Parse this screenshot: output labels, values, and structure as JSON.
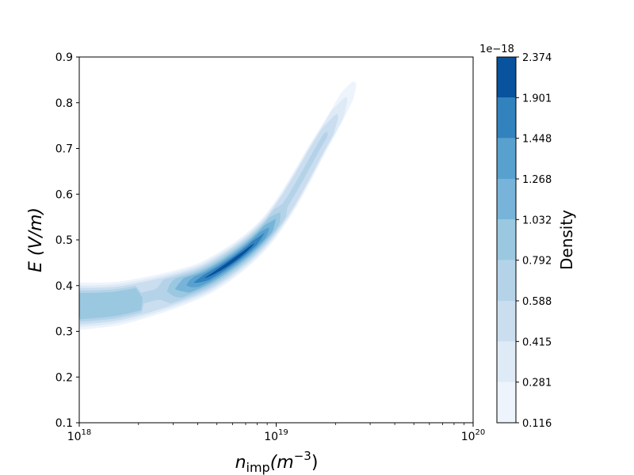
{
  "chart_data": {
    "type": "heatmap",
    "title": "",
    "xlabel": "n_imp(m^-3)",
    "xlabel_main": "n",
    "xlabel_sub": "imp",
    "xlabel_unit": "(m",
    "xlabel_exp": "−3",
    "xlabel_close": ")",
    "ylabel": "E (V/m)",
    "xscale": "log",
    "xlim": [
      1e+18,
      1e+20
    ],
    "ylim": [
      0.1,
      0.9
    ],
    "x_ticks": [
      {
        "value": 1e+18,
        "base": "10",
        "exp": "18"
      },
      {
        "value": 1e+19,
        "base": "10",
        "exp": "19"
      },
      {
        "value": 1e+20,
        "base": "10",
        "exp": "20"
      }
    ],
    "y_ticks": [
      "0.1",
      "0.2",
      "0.3",
      "0.4",
      "0.5",
      "0.6",
      "0.7",
      "0.8",
      "0.9"
    ],
    "colormap": "Blues",
    "colorbar": {
      "label": "Density",
      "offset_text": "1e−18",
      "levels": [
        "0.116",
        "0.281",
        "0.415",
        "0.588",
        "0.792",
        "1.032",
        "1.268",
        "1.448",
        "1.901",
        "2.374"
      ],
      "colors": [
        "#edf4fc",
        "#deebf7",
        "#cadef0",
        "#b4d3e9",
        "#9ac8e0",
        "#78b4d9",
        "#58a1cf",
        "#3282be",
        "#09529d"
      ]
    },
    "ridge": [
      {
        "x": 1e+18,
        "y": 0.355
      },
      {
        "x": 1.5e+18,
        "y": 0.36
      },
      {
        "x": 2.2e+18,
        "y": 0.375
      },
      {
        "x": 3.2e+18,
        "y": 0.395
      },
      {
        "x": 4.5e+18,
        "y": 0.42
      },
      {
        "x": 6.5e+18,
        "y": 0.465
      },
      {
        "x": 8.5e+18,
        "y": 0.51
      },
      {
        "x": 1.05e+19,
        "y": 0.56
      },
      {
        "x": 1.3e+19,
        "y": 0.625
      },
      {
        "x": 1.6e+19,
        "y": 0.695
      },
      {
        "x": 1.9e+19,
        "y": 0.75
      },
      {
        "x": 2.2e+19,
        "y": 0.8
      },
      {
        "x": 2.5e+19,
        "y": 0.845
      }
    ],
    "peak": {
      "x": 4.5e+18,
      "y": 0.42,
      "density": 2.374
    }
  }
}
